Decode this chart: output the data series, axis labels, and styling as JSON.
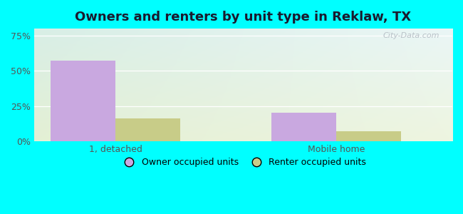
{
  "title": "Owners and renters by unit type in Reklaw, TX",
  "categories": [
    "1, detached",
    "Mobile home"
  ],
  "owner_values": [
    57,
    20
  ],
  "renter_values": [
    16,
    7
  ],
  "owner_color": "#c9a8e0",
  "renter_color": "#c8cc88",
  "owner_label": "Owner occupied units",
  "renter_label": "Renter occupied units",
  "yticks": [
    0,
    25,
    50,
    75
  ],
  "ytick_labels": [
    "0%",
    "25%",
    "50%",
    "75%"
  ],
  "ylim": [
    0,
    80
  ],
  "bar_width": 0.28,
  "bg_topleft": "#ddf0e6",
  "bg_topright": "#e8f6f2",
  "bg_bottomleft": "#e8f2d8",
  "bg_bottomright": "#f0f5e0",
  "outer_bg": "#00ffff",
  "watermark": "City-Data.com",
  "title_fontsize": 13,
  "tick_fontsize": 9,
  "legend_fontsize": 9,
  "group_positions": [
    0.35,
    1.3
  ],
  "xlim": [
    0.0,
    1.8
  ]
}
